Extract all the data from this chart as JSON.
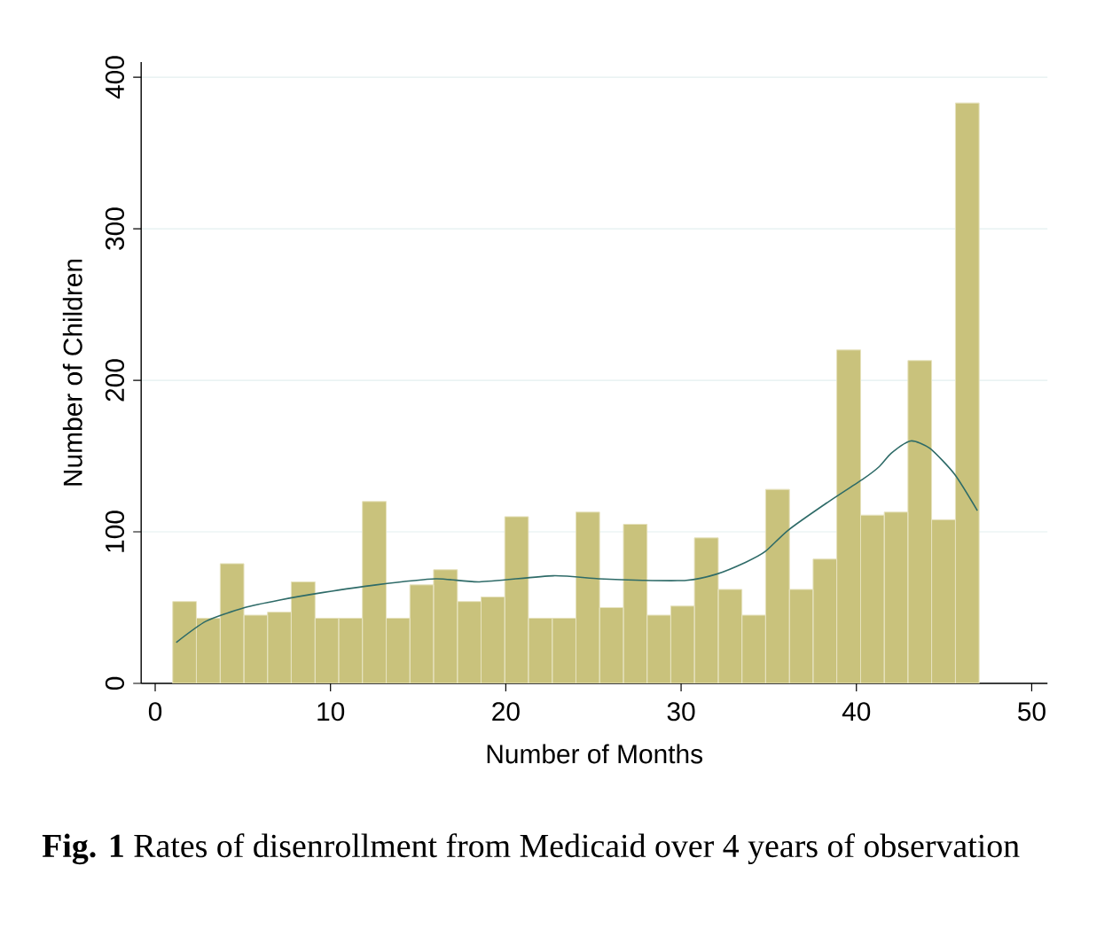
{
  "chart_data": {
    "type": "histogram",
    "xlabel": "Number of Months",
    "ylabel": "Number of Children",
    "annotations": [
      "**Fig. 1** Rates of disenrollment from Medicaid over 4 years of observation"
    ],
    "bins": [
      1.0,
      2.35,
      3.71,
      5.06,
      6.41,
      7.76,
      9.12,
      10.47,
      11.82,
      13.18,
      14.53,
      15.88,
      17.24,
      18.59,
      19.94,
      21.29,
      22.65,
      24.0,
      25.35,
      26.71,
      28.06,
      29.41,
      30.76,
      32.12,
      33.47,
      34.82,
      36.18,
      37.53,
      38.88,
      40.24,
      41.59,
      42.94,
      44.29,
      45.65,
      47.0
    ],
    "values": [
      54,
      43,
      79,
      45,
      47,
      67,
      43,
      43,
      120,
      43,
      65,
      75,
      54,
      57,
      110,
      43,
      43,
      113,
      50,
      105,
      45,
      51,
      96,
      62,
      45,
      128,
      62,
      82,
      220,
      111,
      113,
      213,
      108,
      383
    ],
    "color": "#c9c27c",
    "series": [
      {
        "type": "line",
        "color": "#2e6b68",
        "x": [
          1.2,
          2.9,
          5.1,
          7.1,
          9.6,
          12.6,
          16.0,
          18.5,
          22.7,
          25.3,
          27.8,
          30.3,
          32.0,
          33.7,
          34.8,
          36.1,
          38.3,
          40.4,
          41.3,
          42.0,
          43.1,
          44.2,
          45.6,
          46.9
        ],
        "values": [
          27,
          41,
          50,
          55,
          60,
          65,
          69,
          67,
          71,
          69,
          68,
          68,
          72,
          80,
          87,
          101,
          119,
          135,
          143,
          152,
          160,
          155,
          138,
          114
        ]
      }
    ],
    "xlim": [
      -0.8,
      50.9
    ],
    "ylim": [
      0,
      410
    ],
    "xticks": [
      0,
      10,
      20,
      30,
      40,
      50
    ],
    "yticks": [
      0,
      100,
      200,
      300,
      400
    ],
    "grid": "y"
  }
}
